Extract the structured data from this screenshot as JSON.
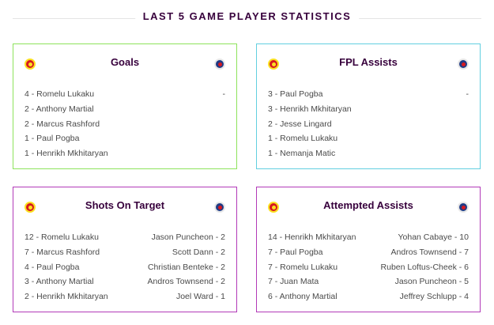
{
  "header": {
    "title": "LAST 5 GAME PLAYER STATISTICS"
  },
  "colors": {
    "goals": "#8de35c",
    "fpl_assists": "#62cfe0",
    "shots_on_target": "#b23ab8",
    "attempted_assists": "#b23ab8"
  },
  "cards": {
    "goals": {
      "title": "Goals",
      "home": [
        "4 - Romelu Lukaku",
        "2 - Anthony Martial",
        "2 - Marcus Rashford",
        "1 - Paul Pogba",
        "1 - Henrikh Mkhitaryan"
      ],
      "away": [
        "-"
      ]
    },
    "fpl_assists": {
      "title": "FPL Assists",
      "home": [
        "3 - Paul Pogba",
        "3 - Henrikh Mkhitaryan",
        "2 - Jesse Lingard",
        "1 - Romelu Lukaku",
        "1 - Nemanja Matic"
      ],
      "away": [
        "-"
      ]
    },
    "shots_on_target": {
      "title": "Shots On Target",
      "home": [
        "12 - Romelu Lukaku",
        "7 - Marcus Rashford",
        "4 - Paul Pogba",
        "3 - Anthony Martial",
        "2 - Henrikh Mkhitaryan"
      ],
      "away": [
        "Jason Puncheon - 2",
        "Scott Dann - 2",
        "Christian Benteke - 2",
        "Andros Townsend - 2",
        "Joel Ward - 1"
      ]
    },
    "attempted_assists": {
      "title": "Attempted Assists",
      "home": [
        "14 - Henrikh Mkhitaryan",
        "7 - Paul Pogba",
        "7 - Romelu Lukaku",
        "7 - Juan Mata",
        "6 - Anthony Martial"
      ],
      "away": [
        "Yohan Cabaye - 10",
        "Andros Townsend - 7",
        "Ruben Loftus-Cheek - 6",
        "Jason Puncheon - 5",
        "Jeffrey Schlupp - 4"
      ]
    }
  }
}
